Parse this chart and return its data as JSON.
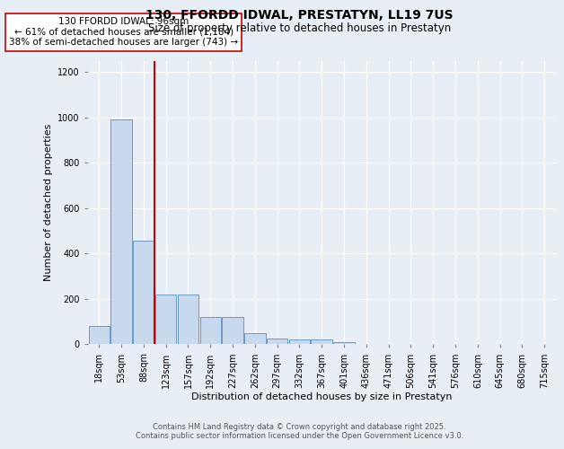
{
  "title_line1": "130, FFORDD IDWAL, PRESTATYN, LL19 7US",
  "title_line2": "Size of property relative to detached houses in Prestatyn",
  "xlabel": "Distribution of detached houses by size in Prestatyn",
  "ylabel": "Number of detached properties",
  "categories": [
    "18sqm",
    "53sqm",
    "88sqm",
    "123sqm",
    "157sqm",
    "192sqm",
    "227sqm",
    "262sqm",
    "297sqm",
    "332sqm",
    "367sqm",
    "401sqm",
    "436sqm",
    "471sqm",
    "506sqm",
    "541sqm",
    "576sqm",
    "610sqm",
    "645sqm",
    "680sqm",
    "715sqm"
  ],
  "bar_heights": [
    80,
    990,
    455,
    220,
    220,
    120,
    120,
    50,
    25,
    22,
    22,
    10,
    0,
    0,
    0,
    0,
    0,
    0,
    0,
    0,
    0
  ],
  "bar_color": "#c8d9ed",
  "bar_edge_color": "#5a8fc0",
  "red_line_x": 2.5,
  "annotation_text": "130 FFORDD IDWAL: 96sqm\n← 61% of detached houses are smaller (1,184)\n38% of semi-detached houses are larger (743) →",
  "annotation_box_facecolor": "#ffffff",
  "annotation_box_edgecolor": "#cc0000",
  "red_line_color": "#cc0000",
  "ylim": [
    0,
    1250
  ],
  "yticks": [
    0,
    200,
    400,
    600,
    800,
    1000,
    1200
  ],
  "footer_line1": "Contains HM Land Registry data © Crown copyright and database right 2025.",
  "footer_line2": "Contains public sector information licensed under the Open Government Licence v3.0.",
  "bg_color": "#e8eef6",
  "plot_bg_color": "#e8eef6",
  "title_fontsize": 10,
  "subtitle_fontsize": 8.5,
  "ylabel_fontsize": 8,
  "xlabel_fontsize": 8,
  "tick_fontsize": 7,
  "annot_fontsize": 7.5,
  "footer_fontsize": 6
}
